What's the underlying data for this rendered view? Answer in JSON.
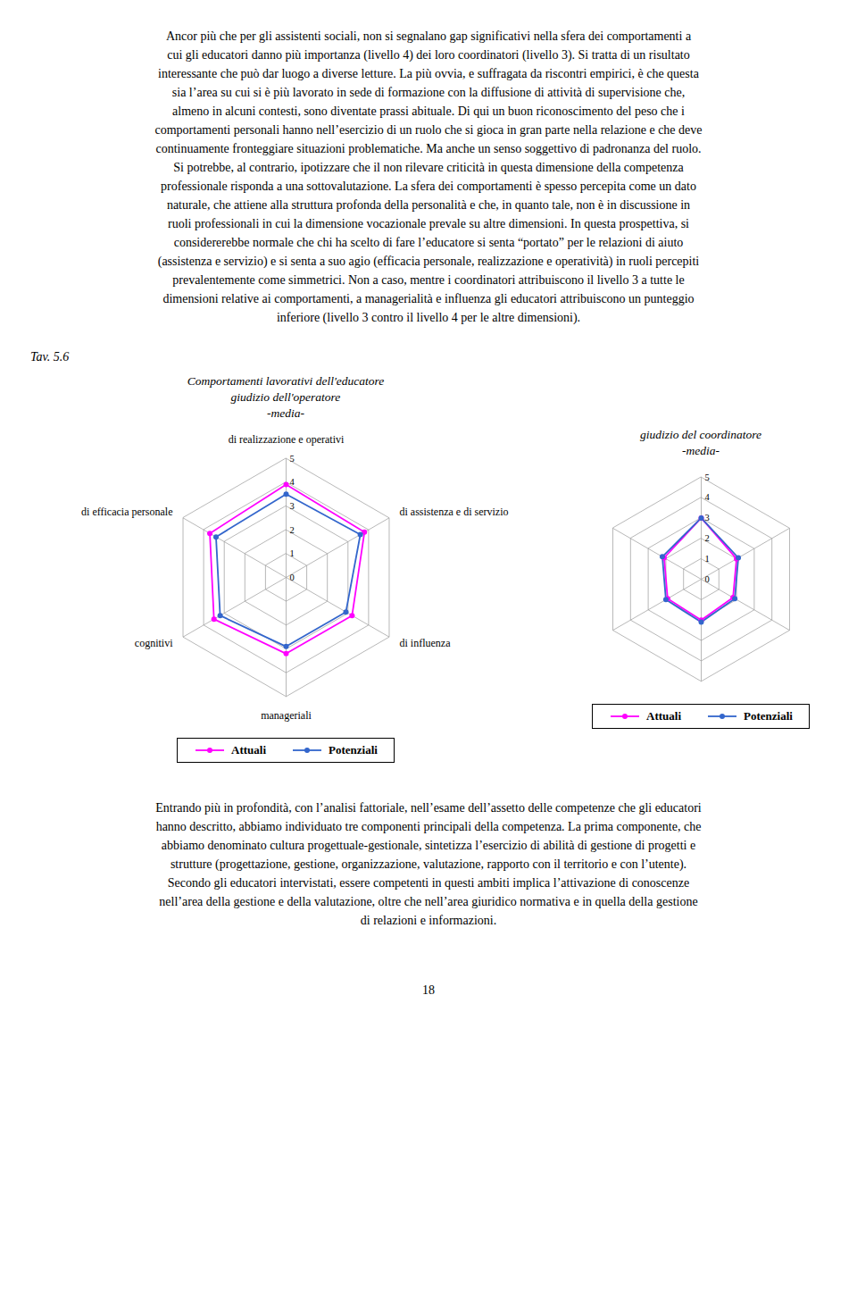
{
  "text_above": [
    "Ancor più che per gli assistenti sociali, non si segnalano gap significativi nella sfera dei comportamenti a",
    "cui gli educatori danno più importanza (livello 4) dei loro coordinatori (livello 3). Si tratta di un risultato",
    "interessante che può dar luogo a diverse letture. La più ovvia, e suffragata da riscontri empirici, è che questa",
    "sia l’area su cui si è più lavorato in sede di formazione con la diffusione di attività di supervisione che,",
    "almeno in alcuni contesti, sono diventate prassi abituale. Di qui un buon riconoscimento del peso che i",
    "comportamenti personali hanno nell’esercizio di un ruolo che si gioca in gran parte nella relazione e che deve",
    "continuamente fronteggiare situazioni problematiche. Ma anche un senso soggettivo di padronanza del ruolo.",
    "Si potrebbe, al contrario, ipotizzare che il non rilevare criticità in questa dimensione della competenza",
    "professionale risponda a una sottovalutazione. La sfera dei comportamenti è spesso percepita come un dato",
    "naturale, che attiene alla struttura profonda della personalità e che, in quanto tale, non è in discussione in",
    "ruoli professionali in cui la dimensione vocazionale prevale su altre dimensioni. In questa prospettiva, si",
    "considererebbe normale che chi ha scelto di fare l’educatore si senta “portato” per le relazioni di aiuto",
    "(assistenza e servizio) e si senta a suo agio (efficacia personale, realizzazione e operatività) in ruoli percepiti",
    "prevalentemente come simmetrici.  Non a caso, mentre i coordinatori attribuiscono il livello 3 a tutte le",
    "dimensioni relative ai comportamenti, a managerialità e influenza gli educatori attribuiscono un punteggio",
    "inferiore (livello 3 contro il livello 4 per le altre dimensioni)."
  ],
  "label": "Tav. 5.6",
  "chart_data": [
    {
      "type": "radar",
      "title": [
        "Comportamenti lavorativi dell'educatore",
        "giudizio dell'operatore",
        "-media-"
      ],
      "categories": [
        "di realizzazione e operativi",
        "di assistenza e di servizio",
        "di influenza",
        "manageriali",
        "cognitivi",
        "di efficacia personale"
      ],
      "series": [
        {
          "name": "Attuali",
          "color": "#FF00FF",
          "values": [
            3.9,
            3.8,
            3.2,
            3.2,
            3.5,
            3.7
          ]
        },
        {
          "name": "Potenziali",
          "color": "#3366CC",
          "values": [
            3.5,
            3.6,
            2.9,
            2.9,
            3.2,
            3.4
          ]
        }
      ],
      "ylim": [
        0,
        5
      ],
      "yticks": [
        0,
        1,
        2,
        3,
        4,
        5
      ],
      "grid": true,
      "legend": "bottom",
      "marker": "o"
    },
    {
      "type": "radar",
      "title": [
        "giudizio del coordinatore",
        "-media-"
      ],
      "categories": [
        null,
        null,
        null,
        null,
        null,
        null
      ],
      "series": [
        {
          "name": "Attuali",
          "color": "#FF00FF",
          "values": [
            3.0,
            2.0,
            1.8,
            2.0,
            1.9,
            2.1
          ]
        },
        {
          "name": "Potenziali",
          "color": "#3366CC",
          "values": [
            3.0,
            2.1,
            1.9,
            2.1,
            2.0,
            2.2
          ]
        }
      ],
      "ylim": [
        0,
        5
      ],
      "yticks": [
        0,
        1,
        2,
        3,
        4,
        5
      ],
      "grid": true,
      "legend": "bottom",
      "marker": "o"
    }
  ],
  "text_below": [
    "Entrando più in profondità, con l’analisi fattoriale, nell’esame dell’assetto delle competenze che gli educatori",
    "hanno descritto, abbiamo individuato tre componenti principali della competenza. La prima componente, che",
    "abbiamo denominato cultura progettuale-gestionale, sintetizza l’esercizio di abilità di gestione di progetti e",
    "strutture (progettazione, gestione, organizzazione, valutazione, rapporto con il territorio e con l’utente).",
    "Secondo gli educatori intervistati, essere competenti in questi ambiti implica l’attivazione di conoscenze",
    "nell’area della gestione e della valutazione, oltre che nell’area giuridico normativa e in quella della gestione",
    "di relazioni e informazioni."
  ],
  "page_number": "18"
}
